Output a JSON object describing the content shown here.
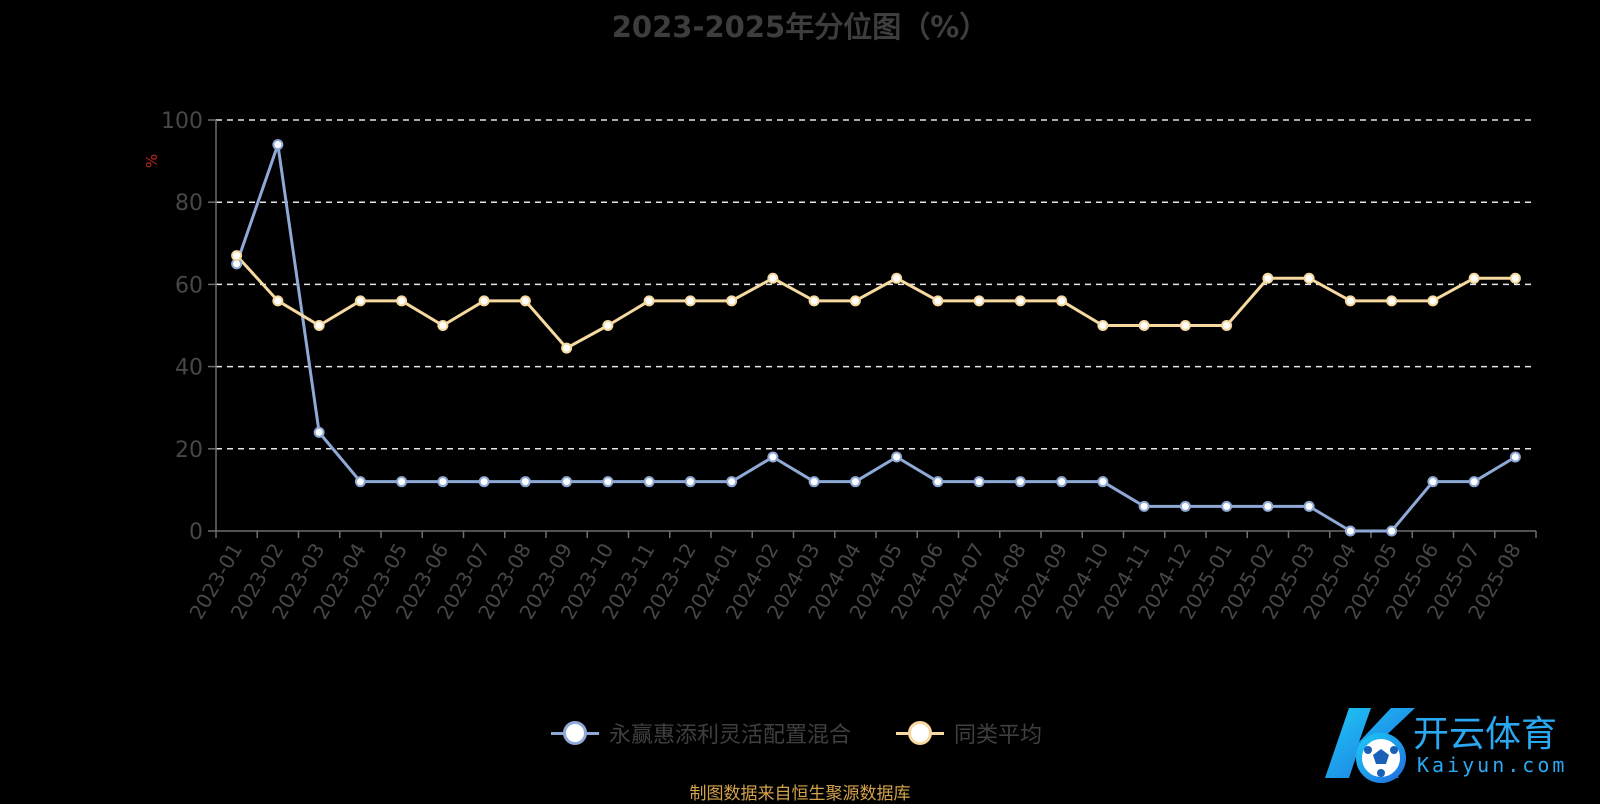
{
  "chart_data": {
    "type": "line",
    "title": "2023-2025年分位图（%）",
    "ylabel": "%",
    "xlabel": "",
    "ylim": [
      0,
      100
    ],
    "yticks": [
      0,
      20,
      40,
      60,
      80,
      100
    ],
    "grid": true,
    "legend_position": "bottom",
    "categories": [
      "2023-01",
      "2023-02",
      "2023-03",
      "2023-04",
      "2023-05",
      "2023-06",
      "2023-07",
      "2023-08",
      "2023-09",
      "2023-10",
      "2023-11",
      "2023-12",
      "2024-01",
      "2024-02",
      "2024-03",
      "2024-04",
      "2024-05",
      "2024-06",
      "2024-07",
      "2024-08",
      "2024-09",
      "2024-10",
      "2024-11",
      "2024-12",
      "2025-01",
      "2025-02",
      "2025-03",
      "2025-04",
      "2025-05",
      "2025-06",
      "2025-07",
      "2025-08"
    ],
    "series": [
      {
        "name": "永赢惠添利灵活配置混合",
        "color": "#8fa9d6",
        "values": [
          65,
          94,
          24,
          12,
          12,
          12,
          12,
          12,
          12,
          12,
          12,
          12,
          12,
          18,
          12,
          12,
          18,
          12,
          12,
          12,
          12,
          12,
          6,
          6,
          6,
          6,
          6,
          0,
          0,
          12,
          12,
          18
        ]
      },
      {
        "name": "同类平均",
        "color": "#f5d9a0",
        "values": [
          67,
          56,
          50,
          56,
          56,
          50,
          56,
          56,
          44.5,
          50,
          56,
          56,
          56,
          61.5,
          56,
          56,
          61.5,
          56,
          56,
          56,
          56,
          50,
          50,
          50,
          50,
          61.5,
          61.5,
          56,
          56,
          56,
          61.5,
          61.5
        ]
      }
    ]
  },
  "source_note": "制图数据来自恒生聚源数据库",
  "watermark": {
    "text_main": "开云体育",
    "text_sub": "Kaiyun.com",
    "brand_color": "#2aa8f2"
  }
}
